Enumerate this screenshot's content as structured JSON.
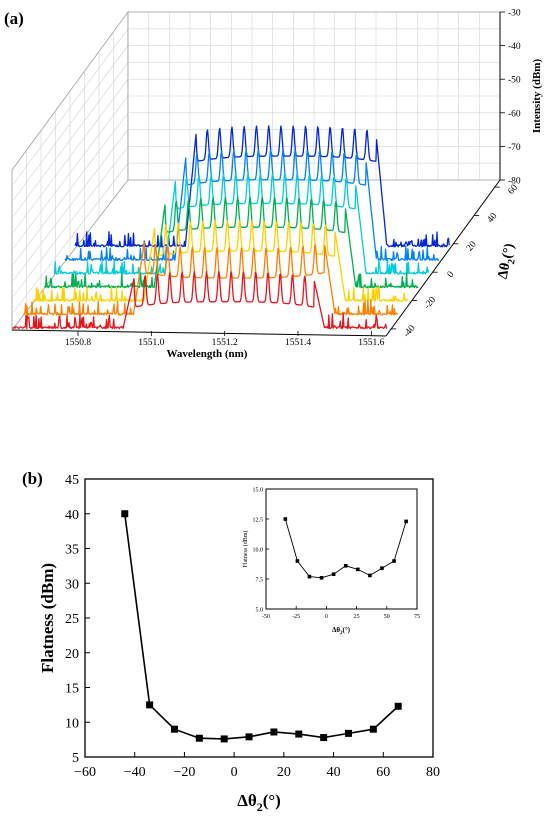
{
  "panel_a": {
    "label": "(a)",
    "chart_data": {
      "type": "line",
      "projection": "3d-waterfall",
      "xlabel": "Wavelength (nm)",
      "ylabel": "Δθ2(°)",
      "zlabel": "Intensity (dBm)",
      "x_ticks": [
        "1550.8",
        "1551.0",
        "1551.2",
        "1551.4",
        "1551.6"
      ],
      "xlim": [
        1550.62,
        1551.64
      ],
      "y_ticks": [
        "-40",
        "-20",
        "0",
        "20",
        "40",
        "60"
      ],
      "ylim": [
        -45,
        65
      ],
      "z_ticks": [
        "-80",
        "-70",
        "-60",
        "-50",
        "-40",
        "-30"
      ],
      "zlim": [
        -80,
        -30
      ],
      "grid": true,
      "series": [
        {
          "angle": -44,
          "color": "#e8141b",
          "comb_start": 1550.93,
          "comb_end": 1551.46,
          "edge_level": -65,
          "peak_level": -63
        },
        {
          "angle": -34,
          "color": "#ff8000",
          "comb_start": 1550.93,
          "comb_end": 1551.46,
          "edge_level": -58,
          "peak_level": -60
        },
        {
          "angle": -24,
          "color": "#ffd000",
          "comb_start": 1550.93,
          "comb_end": 1551.46,
          "edge_level": -58,
          "peak_level": -56
        },
        {
          "angle": -14,
          "color": "#00b050",
          "comb_start": 1550.93,
          "comb_end": 1551.46,
          "edge_level": -55,
          "peak_level": -53
        },
        {
          "angle": -4,
          "color": "#00cdd9",
          "comb_start": 1550.93,
          "comb_end": 1551.46,
          "edge_level": -52,
          "peak_level": -50
        },
        {
          "angle": 6,
          "color": "#0080ff",
          "comb_start": 1550.93,
          "comb_end": 1551.46,
          "edge_level": -49,
          "peak_level": -47
        },
        {
          "angle": 16,
          "color": "#0026d9",
          "comb_start": 1550.93,
          "comb_end": 1551.46,
          "edge_level": -46,
          "peak_level": -44
        }
      ]
    }
  },
  "panel_b": {
    "label": "(b)",
    "chart_data": {
      "type": "line",
      "markers": "square",
      "xlabel": "Δθ2(°)",
      "ylabel": "Flatness (dBm)",
      "xlim": [
        -60,
        80
      ],
      "ylim": [
        5,
        45
      ],
      "x_ticks": [
        "−60",
        "−40",
        "−20",
        "0",
        "20",
        "40",
        "60",
        "80"
      ],
      "y_ticks": [
        "5",
        "10",
        "15",
        "20",
        "25",
        "30",
        "35",
        "40",
        "45"
      ],
      "x": [
        -44,
        -34,
        -24,
        -14,
        -4,
        6,
        16,
        26,
        36,
        46,
        56,
        66
      ],
      "y": [
        40.0,
        12.5,
        9.0,
        7.7,
        7.6,
        7.9,
        8.6,
        8.3,
        7.8,
        8.4,
        9.0,
        12.3
      ],
      "inset": {
        "xlabel": "Δθ2(°)",
        "ylabel": "Flatness (dBm)",
        "xlim": [
          -50,
          75
        ],
        "ylim": [
          5.0,
          15.0
        ],
        "x_ticks": [
          "-50",
          "-25",
          "0",
          "25",
          "50",
          "75"
        ],
        "y_ticks": [
          "5.0",
          "7.5",
          "10.0",
          "12.5",
          "15.0"
        ],
        "x": [
          -34,
          -24,
          -14,
          -4,
          6,
          16,
          26,
          36,
          46,
          56,
          66
        ],
        "y": [
          12.5,
          9.0,
          7.7,
          7.6,
          7.9,
          8.6,
          8.3,
          7.8,
          8.4,
          9.0,
          12.3
        ]
      }
    }
  }
}
